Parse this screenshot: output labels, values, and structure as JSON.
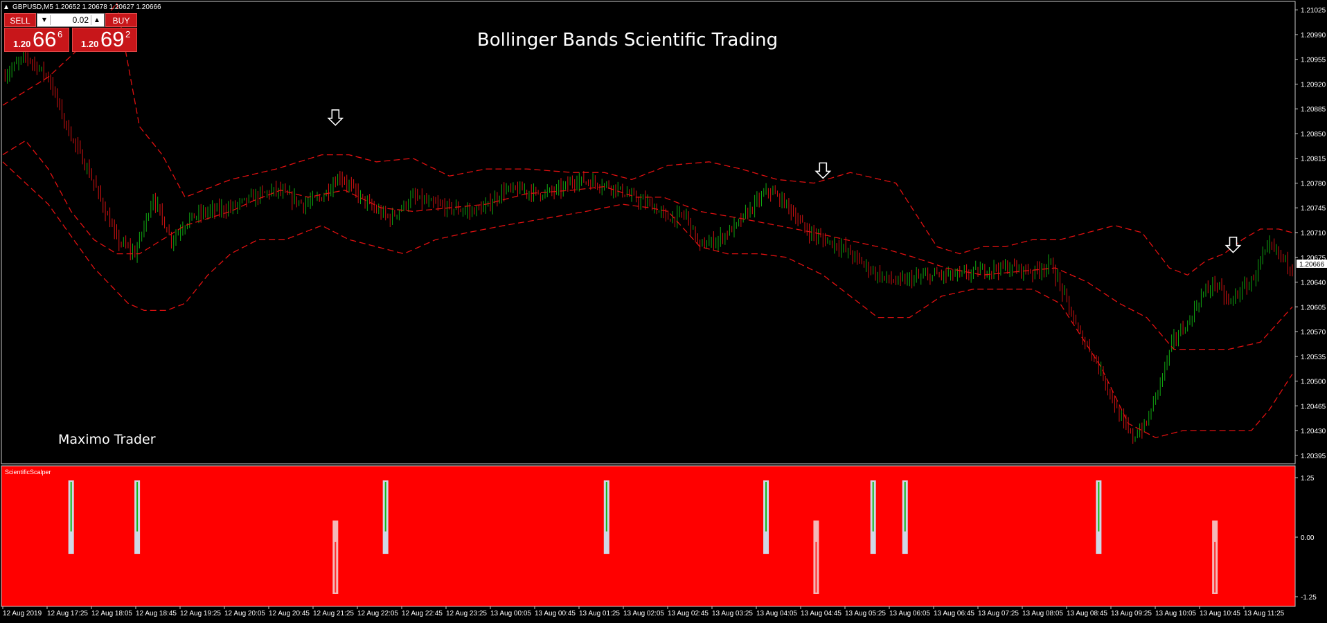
{
  "window": {
    "symbol_header": "GBPUSD,M5  1.20652 1.20678 1.20627 1.20666"
  },
  "trade_panel": {
    "sell_label": "SELL",
    "buy_label": "BUY",
    "lot_value": "0.02",
    "sell_price": {
      "prefix": "1.20",
      "big": "66",
      "sup": "6"
    },
    "buy_price": {
      "prefix": "1.20",
      "big": "69",
      "sup": "2"
    }
  },
  "annotations": {
    "title": "Bollinger Bands Scientific Trading",
    "brand": "Maximo Trader"
  },
  "indicator": {
    "name": "ScientificScalper",
    "y_ticks": [
      "1.25",
      "0.00",
      "-1.25"
    ]
  },
  "colors": {
    "background": "#000000",
    "band": "#e01010",
    "bull_candle": "#11a611",
    "bear_candle": "#d41212",
    "indicator_bg": "#ff0000",
    "signal_bar": "#cfd8e6",
    "signal_green": "#12b512",
    "signal_red": "#ff2a2a"
  },
  "chart_data": [
    {
      "type": "candlestick",
      "title": "Bollinger Bands Scientific Trading",
      "current_price": "1.20666",
      "ylim": [
        1.20385,
        1.21035
      ],
      "y_ticks": [
        "1.21025",
        "1.20990",
        "1.20955",
        "1.20920",
        "1.20885",
        "1.20850",
        "1.20815",
        "1.20780",
        "1.20745",
        "1.20710",
        "1.20675",
        "1.20640",
        "1.20605",
        "1.20570",
        "1.20535",
        "1.20500",
        "1.20465",
        "1.20430",
        "1.20395"
      ],
      "x_ticks": [
        "12 Aug 2019",
        "12 Aug 17:25",
        "12 Aug 18:05",
        "12 Aug 18:45",
        "12 Aug 19:25",
        "12 Aug 20:05",
        "12 Aug 20:45",
        "12 Aug 21:25",
        "12 Aug 22:05",
        "12 Aug 22:45",
        "12 Aug 23:25",
        "13 Aug 00:05",
        "13 Aug 00:45",
        "13 Aug 01:25",
        "13 Aug 02:05",
        "13 Aug 02:45",
        "13 Aug 03:25",
        "13 Aug 04:05",
        "13 Aug 04:45",
        "13 Aug 05:25",
        "13 Aug 06:05",
        "13 Aug 06:45",
        "13 Aug 07:25",
        "13 Aug 08:05",
        "13 Aug 08:45",
        "13 Aug 09:25",
        "13 Aug 10:05",
        "13 Aug 10:45",
        "13 Aug 11:25"
      ],
      "price_path": [
        [
          0,
          1.2093
        ],
        [
          10,
          1.2096
        ],
        [
          20,
          1.2093
        ],
        [
          28,
          1.2086
        ],
        [
          40,
          1.2078
        ],
        [
          50,
          1.207
        ],
        [
          58,
          1.2068
        ],
        [
          66,
          1.2076
        ],
        [
          74,
          1.207
        ],
        [
          82,
          1.2073
        ],
        [
          90,
          1.2074
        ],
        [
          100,
          1.20745
        ],
        [
          110,
          1.2076
        ],
        [
          120,
          1.2077
        ],
        [
          132,
          1.2075
        ],
        [
          140,
          1.2076
        ],
        [
          148,
          1.2079
        ],
        [
          154,
          1.2077
        ],
        [
          162,
          1.20745
        ],
        [
          170,
          1.2073
        ],
        [
          180,
          1.2076
        ],
        [
          188,
          1.2075
        ],
        [
          196,
          1.20745
        ],
        [
          205,
          1.2074
        ],
        [
          212,
          1.20745
        ],
        [
          220,
          1.2077
        ],
        [
          228,
          1.2077
        ],
        [
          236,
          1.20765
        ],
        [
          244,
          1.2077
        ],
        [
          252,
          1.20785
        ],
        [
          260,
          1.2078
        ],
        [
          268,
          1.20775
        ],
        [
          276,
          1.2076
        ],
        [
          284,
          1.2075
        ],
        [
          292,
          1.2073
        ],
        [
          300,
          1.20735
        ],
        [
          306,
          1.2069
        ],
        [
          314,
          1.207
        ],
        [
          322,
          1.2072
        ],
        [
          330,
          1.2075
        ],
        [
          336,
          1.2077
        ],
        [
          344,
          1.2075
        ],
        [
          352,
          1.20715
        ],
        [
          360,
          1.207
        ],
        [
          368,
          1.2069
        ],
        [
          376,
          1.2067
        ],
        [
          384,
          1.2065
        ],
        [
          392,
          1.2064
        ],
        [
          400,
          1.20645
        ],
        [
          410,
          1.2065
        ],
        [
          420,
          1.2065
        ],
        [
          428,
          1.20655
        ],
        [
          436,
          1.2066
        ],
        [
          444,
          1.2066
        ],
        [
          452,
          1.20655
        ],
        [
          460,
          1.20665
        ],
        [
          466,
          1.2062
        ],
        [
          472,
          1.2057
        ],
        [
          478,
          1.2054
        ],
        [
          484,
          1.205
        ],
        [
          490,
          1.2045
        ],
        [
          496,
          1.2042
        ],
        [
          502,
          1.2044
        ],
        [
          508,
          1.205
        ],
        [
          514,
          1.2056
        ],
        [
          520,
          1.2058
        ],
        [
          526,
          1.2062
        ],
        [
          532,
          1.2064
        ],
        [
          538,
          1.2061
        ],
        [
          544,
          1.2063
        ],
        [
          548,
          1.2064
        ],
        [
          552,
          1.2067
        ],
        [
          556,
          1.2069
        ],
        [
          560,
          1.2068
        ],
        [
          566,
          1.2066
        ]
      ],
      "series": [
        {
          "name": "",
          "style": "dashed",
          "points": [
            [
              0,
              1.2089
            ],
            [
              20,
              1.2093
            ],
            [
              40,
              1.2099
            ],
            [
              50,
              1.21035
            ],
            [
              60,
              1.2086
            ],
            [
              70,
              1.2082
            ],
            [
              80,
              1.2076
            ],
            [
              100,
              1.20785
            ],
            [
              120,
              1.208
            ],
            [
              140,
              1.2082
            ],
            [
              152,
              1.2082
            ],
            [
              164,
              1.2081
            ],
            [
              180,
              1.20815
            ],
            [
              196,
              1.2079
            ],
            [
              212,
              1.208
            ],
            [
              230,
              1.208
            ],
            [
              250,
              1.20795
            ],
            [
              264,
              1.20795
            ],
            [
              276,
              1.20785
            ],
            [
              292,
              1.20805
            ],
            [
              310,
              1.2081
            ],
            [
              324,
              1.208
            ],
            [
              340,
              1.20785
            ],
            [
              356,
              1.2078
            ],
            [
              372,
              1.20795
            ],
            [
              392,
              1.2078
            ],
            [
              410,
              1.2069
            ],
            [
              420,
              1.2068
            ],
            [
              430,
              1.2069
            ],
            [
              440,
              1.2069
            ],
            [
              452,
              1.207
            ],
            [
              464,
              1.207
            ],
            [
              476,
              1.2071
            ],
            [
              488,
              1.2072
            ],
            [
              500,
              1.2071
            ],
            [
              512,
              1.2066
            ],
            [
              520,
              1.2065
            ],
            [
              528,
              1.2067
            ],
            [
              536,
              1.2068
            ],
            [
              544,
              1.207
            ],
            [
              552,
              1.20715
            ],
            [
              560,
              1.20715
            ],
            [
              566,
              1.2071
            ]
          ]
        },
        {
          "name": "",
          "style": "dashed",
          "points": [
            [
              0,
              1.2082
            ],
            [
              10,
              1.2084
            ],
            [
              20,
              1.208
            ],
            [
              30,
              1.2074
            ],
            [
              40,
              1.207
            ],
            [
              50,
              1.2068
            ],
            [
              60,
              1.2068
            ],
            [
              70,
              1.207
            ],
            [
              80,
              1.2072
            ],
            [
              90,
              1.2073
            ],
            [
              100,
              1.2074
            ],
            [
              110,
              1.20755
            ],
            [
              122,
              1.2077
            ],
            [
              134,
              1.2076
            ],
            [
              150,
              1.2077
            ],
            [
              166,
              1.20745
            ],
            [
              180,
              1.2074
            ],
            [
              196,
              1.20745
            ],
            [
              212,
              1.2075
            ],
            [
              230,
              1.20765
            ],
            [
              250,
              1.2077
            ],
            [
              264,
              1.20775
            ],
            [
              278,
              1.2076
            ],
            [
              290,
              1.2076
            ],
            [
              306,
              1.2074
            ],
            [
              324,
              1.2073
            ],
            [
              340,
              1.2072
            ],
            [
              356,
              1.2071
            ],
            [
              370,
              1.207
            ],
            [
              384,
              1.2069
            ],
            [
              400,
              1.20675
            ],
            [
              414,
              1.2066
            ],
            [
              430,
              1.2065
            ],
            [
              446,
              1.20655
            ],
            [
              462,
              1.2066
            ],
            [
              476,
              1.2064
            ],
            [
              490,
              1.2061
            ],
            [
              502,
              1.2059
            ],
            [
              514,
              1.20545
            ],
            [
              526,
              1.20545
            ],
            [
              538,
              1.20545
            ],
            [
              552,
              1.20555
            ],
            [
              566,
              1.20605
            ]
          ]
        },
        {
          "name": "",
          "style": "dashed",
          "points": [
            [
              0,
              1.2081
            ],
            [
              20,
              1.2075
            ],
            [
              40,
              1.2066
            ],
            [
              55,
              1.2061
            ],
            [
              62,
              1.206
            ],
            [
              72,
              1.206
            ],
            [
              80,
              1.2061
            ],
            [
              90,
              1.2065
            ],
            [
              100,
              1.2068
            ],
            [
              112,
              1.207
            ],
            [
              124,
              1.207
            ],
            [
              140,
              1.2072
            ],
            [
              152,
              1.207
            ],
            [
              164,
              1.2069
            ],
            [
              176,
              1.2068
            ],
            [
              190,
              1.207
            ],
            [
              204,
              1.2071
            ],
            [
              220,
              1.2072
            ],
            [
              238,
              1.2073
            ],
            [
              256,
              1.2074
            ],
            [
              272,
              1.2075
            ],
            [
              284,
              1.20745
            ],
            [
              292,
              1.2074
            ],
            [
              306,
              1.2069
            ],
            [
              318,
              1.2068
            ],
            [
              332,
              1.2068
            ],
            [
              344,
              1.20675
            ],
            [
              360,
              1.2065
            ],
            [
              372,
              1.2062
            ],
            [
              384,
              1.2059
            ],
            [
              398,
              1.2059
            ],
            [
              412,
              1.2062
            ],
            [
              426,
              1.2063
            ],
            [
              440,
              1.2063
            ],
            [
              452,
              1.2063
            ],
            [
              464,
              1.2061
            ],
            [
              474,
              1.2056
            ],
            [
              482,
              1.2052
            ],
            [
              494,
              1.2044
            ],
            [
              506,
              1.2042
            ],
            [
              518,
              1.2043
            ],
            [
              530,
              1.2043
            ],
            [
              540,
              1.2043
            ],
            [
              548,
              1.2043
            ],
            [
              556,
              1.2046
            ],
            [
              566,
              1.2051
            ]
          ]
        }
      ],
      "arrow_signals": [
        {
          "x": 146,
          "y": 1.2086,
          "direction": "down"
        },
        {
          "x": 360,
          "y": 1.20785,
          "direction": "down"
        },
        {
          "x": 540,
          "y": 1.2068,
          "direction": "down"
        }
      ]
    },
    {
      "type": "bar",
      "title": "ScientificScalper",
      "ylim": [
        -1.25,
        1.25
      ],
      "y_ticks": [
        "1.25",
        "0.00",
        "-1.25"
      ],
      "signals": [
        {
          "x": 30,
          "value": 1.0
        },
        {
          "x": 59,
          "value": 1.0
        },
        {
          "x": 146,
          "value": -1.0
        },
        {
          "x": 168,
          "value": 1.0
        },
        {
          "x": 265,
          "value": 1.0
        },
        {
          "x": 335,
          "value": 1.0
        },
        {
          "x": 357,
          "value": -1.0
        },
        {
          "x": 382,
          "value": 1.0
        },
        {
          "x": 396,
          "value": 1.0
        },
        {
          "x": 481,
          "value": 1.0
        },
        {
          "x": 532,
          "value": -1.0
        }
      ]
    }
  ]
}
